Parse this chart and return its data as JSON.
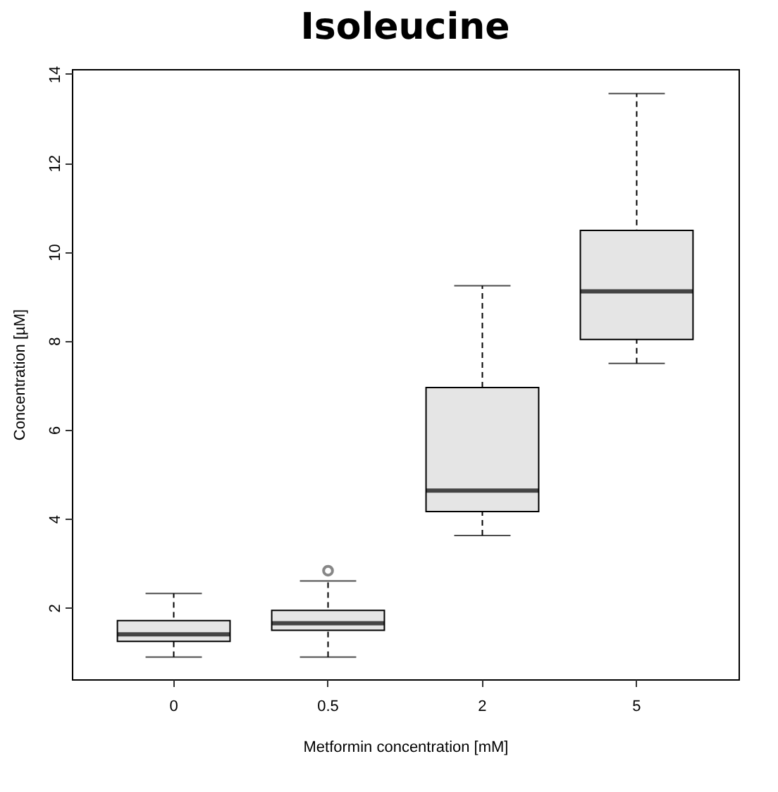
{
  "chart_data": {
    "type": "box",
    "title": "Isoleucine",
    "xlabel": "Metformin concentration [mM]",
    "ylabel": "Concentration [µM]",
    "categories": [
      "0",
      "0.5",
      "2",
      "5"
    ],
    "color": "#e5e5e5",
    "boxes": [
      {
        "low": 0.89,
        "q1": 1.24,
        "median": 1.4,
        "q3": 1.71,
        "high": 2.32
      },
      {
        "low": 0.89,
        "q1": 1.49,
        "median": 1.65,
        "q3": 1.94,
        "high": 2.6,
        "outliers": [
          2.83
        ]
      },
      {
        "low": 3.62,
        "q1": 4.16,
        "median": 4.63,
        "q3": 6.95,
        "high": 9.24
      },
      {
        "low": 7.49,
        "q1": 8.03,
        "median": 9.11,
        "q3": 10.48,
        "high": 13.56
      }
    ],
    "ylim": [
      0.39,
      14.11
    ],
    "yticks": [
      2,
      4,
      6,
      8,
      10,
      12,
      14
    ]
  }
}
